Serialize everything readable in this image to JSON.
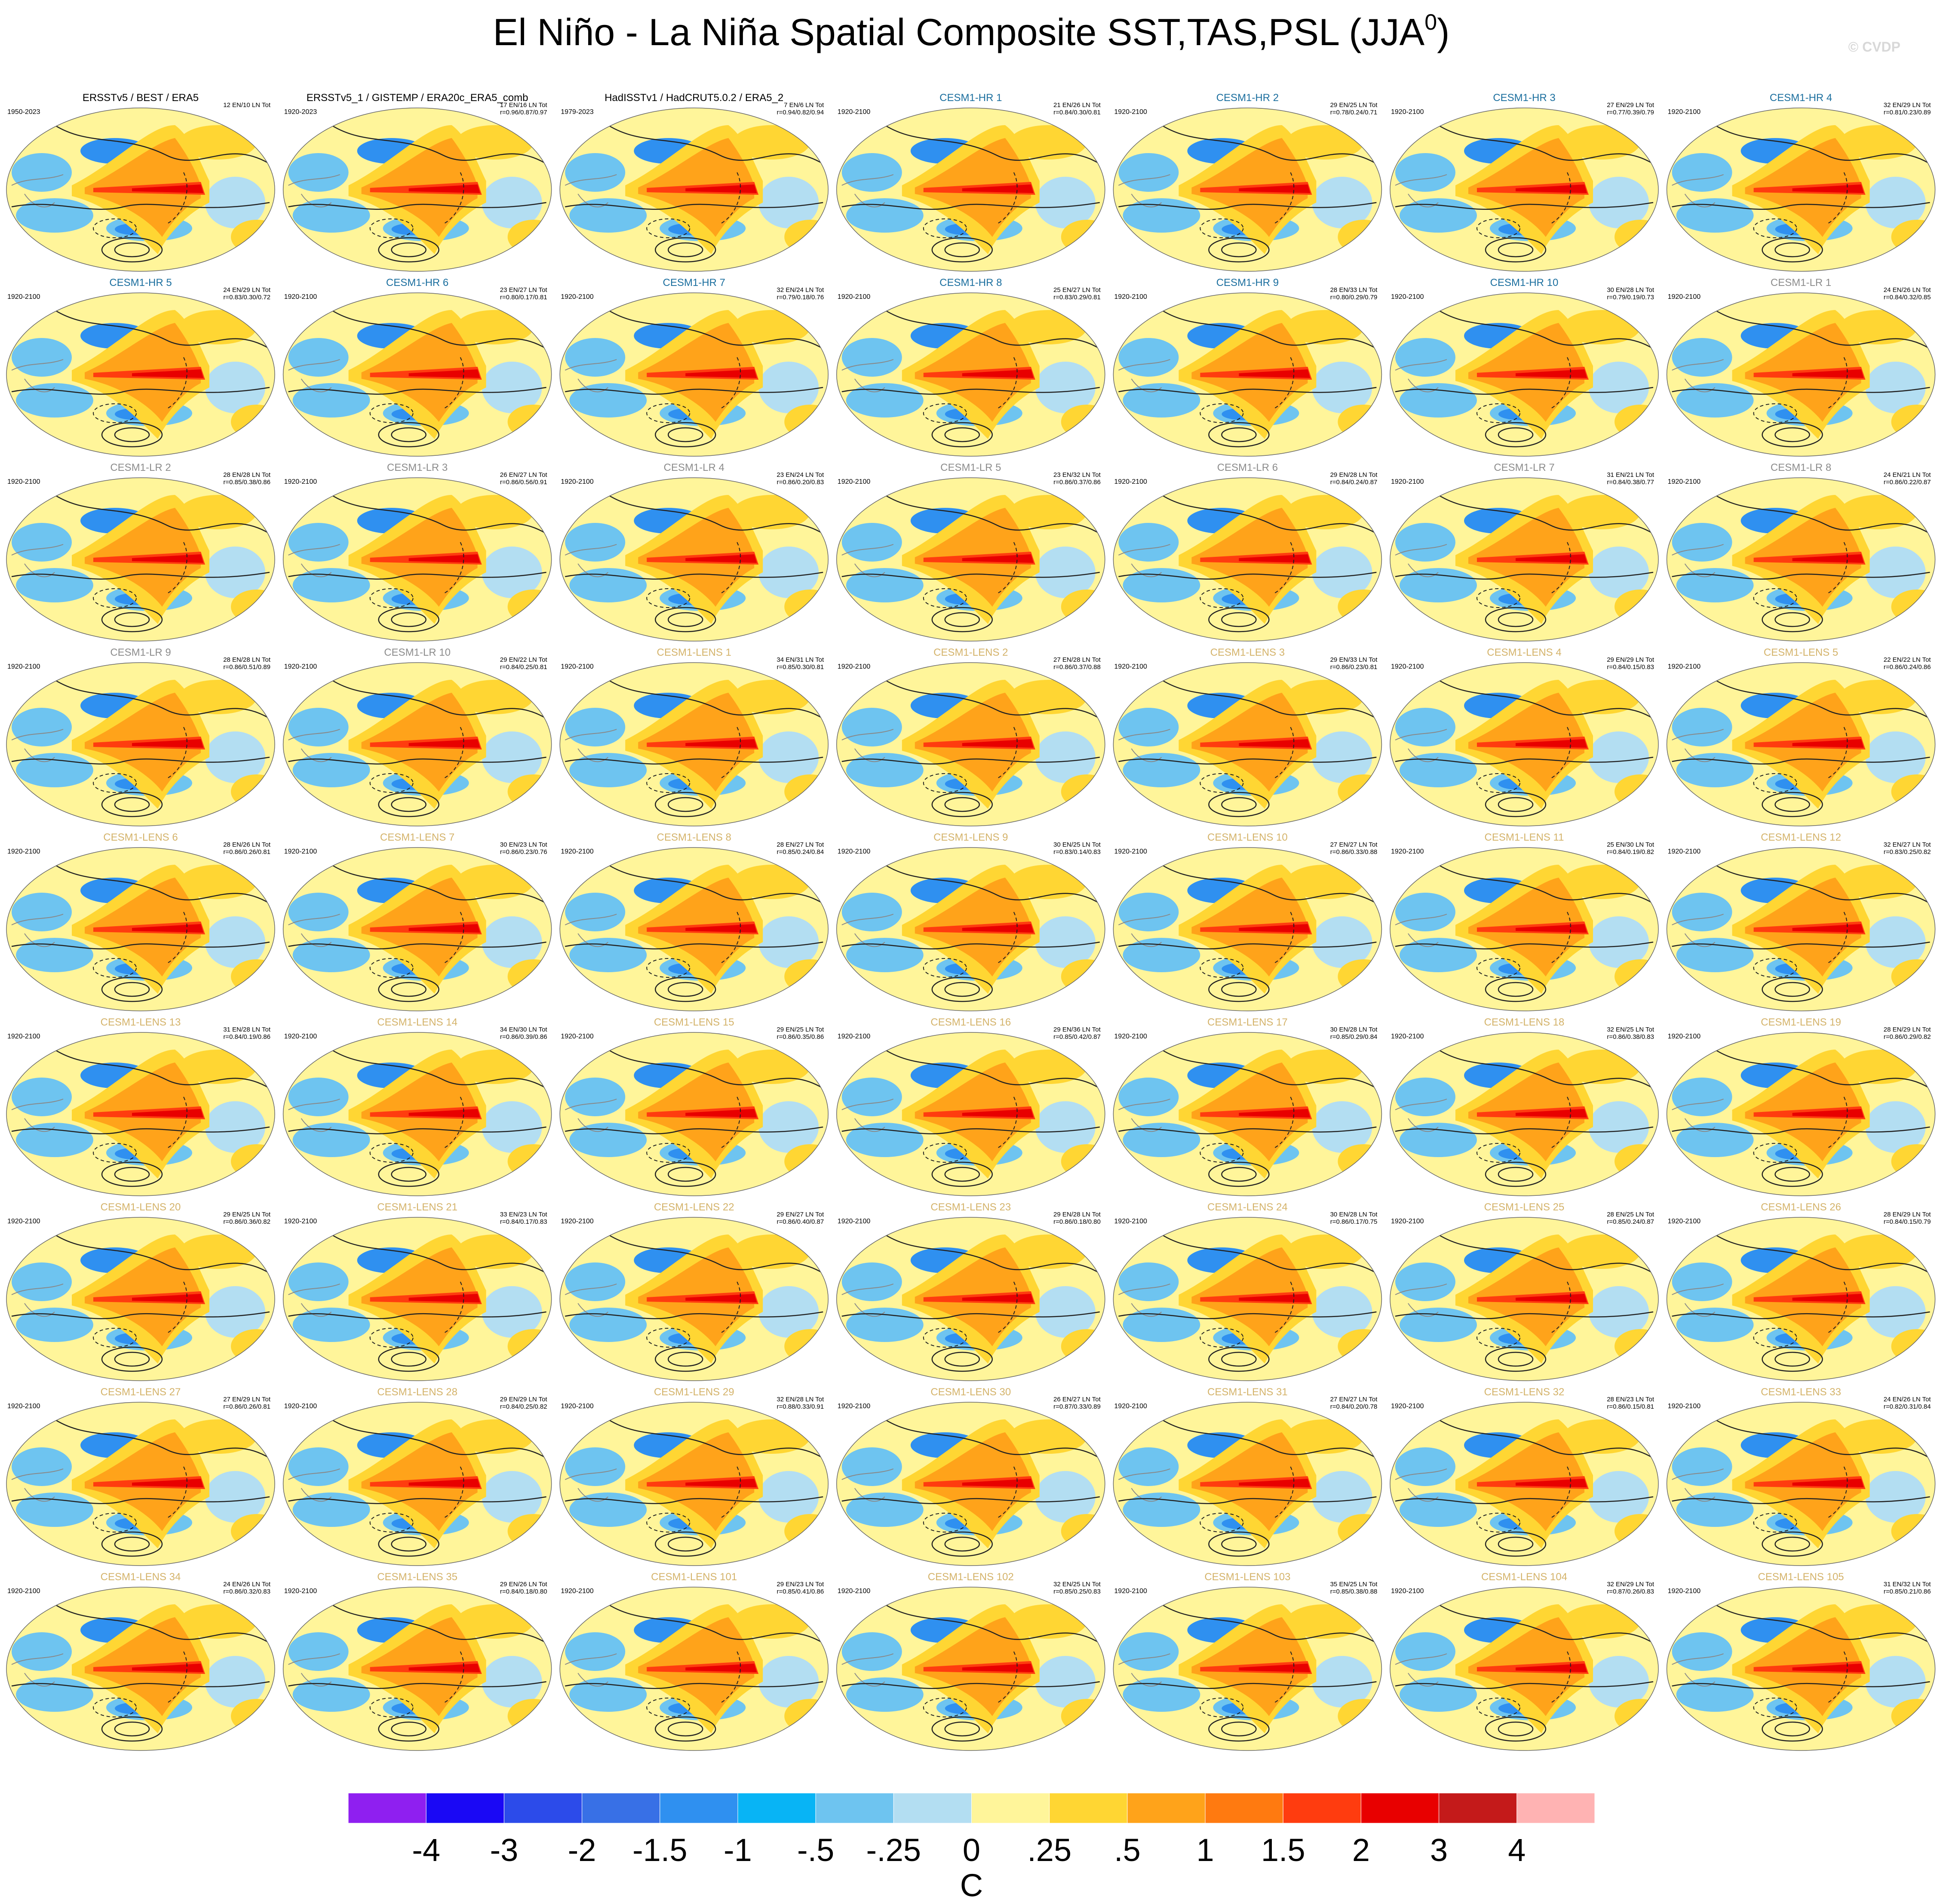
{
  "title": "El Niño - La Niña Spatial Composite SST,TAS,PSL (JJA",
  "title_superscript": "0",
  "title_close": ")",
  "watermark": "© CVDP",
  "panels": [
    {
      "title": "ERSSTv5 / BEST / ERA5",
      "color": "#000000",
      "period": "1950-2023",
      "counts": "12 EN/10 LN Tot"
    },
    {
      "title": "ERSSTv5_1 / GISTEMP / ERA20c_ERA5_comb",
      "color": "#000000",
      "period": "1920-2023",
      "counts": "17 EN/16 LN Tot",
      "stats": "r=0.96/0.87/0.97"
    },
    {
      "title": "HadISSTv1 / HadCRUT5.0.2 / ERA5_2",
      "color": "#000000",
      "period": "1979-2023",
      "counts": "7 EN/6 LN Tot",
      "stats": "r=0.94/0.82/0.94"
    },
    {
      "title": "CESM1-HR 1",
      "color": "#1a6e9e",
      "period": "1920-2100",
      "counts": "21 EN/26 LN Tot",
      "stats": "r=0.84/0.30/0.81"
    },
    {
      "title": "CESM1-HR 2",
      "color": "#1a6e9e",
      "period": "1920-2100",
      "counts": "29 EN/25 LN Tot",
      "stats": "r=0.78/0.24/0.71"
    },
    {
      "title": "CESM1-HR 3",
      "color": "#1a6e9e",
      "period": "1920-2100",
      "counts": "27 EN/29 LN Tot",
      "stats": "r=0.77/0.39/0.79"
    },
    {
      "title": "CESM1-HR 4",
      "color": "#1a6e9e",
      "period": "1920-2100",
      "counts": "32 EN/29 LN Tot",
      "stats": "r=0.81/0.23/0.89"
    },
    {
      "title": "CESM1-HR 5",
      "color": "#1a6e9e",
      "period": "1920-2100",
      "counts": "24 EN/29 LN Tot",
      "stats": "r=0.83/0.30/0.72"
    },
    {
      "title": "CESM1-HR 6",
      "color": "#1a6e9e",
      "period": "1920-2100",
      "counts": "23 EN/27 LN Tot",
      "stats": "r=0.80/0.17/0.81"
    },
    {
      "title": "CESM1-HR 7",
      "color": "#1a6e9e",
      "period": "1920-2100",
      "counts": "32 EN/24 LN Tot",
      "stats": "r=0.79/0.18/0.76"
    },
    {
      "title": "CESM1-HR 8",
      "color": "#1a6e9e",
      "period": "1920-2100",
      "counts": "25 EN/27 LN Tot",
      "stats": "r=0.83/0.29/0.81"
    },
    {
      "title": "CESM1-HR 9",
      "color": "#1a6e9e",
      "period": "1920-2100",
      "counts": "28 EN/33 LN Tot",
      "stats": "r=0.80/0.29/0.79"
    },
    {
      "title": "CESM1-HR 10",
      "color": "#1a6e9e",
      "period": "1920-2100",
      "counts": "30 EN/28 LN Tot",
      "stats": "r=0.79/0.19/0.73"
    },
    {
      "title": "CESM1-LR 1",
      "color": "#8c8c8c",
      "period": "1920-2100",
      "counts": "24 EN/26 LN Tot",
      "stats": "r=0.84/0.32/0.85"
    },
    {
      "title": "CESM1-LR 2",
      "color": "#8c8c8c",
      "period": "1920-2100",
      "counts": "28 EN/28 LN Tot",
      "stats": "r=0.85/0.38/0.86"
    },
    {
      "title": "CESM1-LR 3",
      "color": "#8c8c8c",
      "period": "1920-2100",
      "counts": "26 EN/27 LN Tot",
      "stats": "r=0.86/0.56/0.91"
    },
    {
      "title": "CESM1-LR 4",
      "color": "#8c8c8c",
      "period": "1920-2100",
      "counts": "23 EN/24 LN Tot",
      "stats": "r=0.86/0.20/0.83"
    },
    {
      "title": "CESM1-LR 5",
      "color": "#8c8c8c",
      "period": "1920-2100",
      "counts": "23 EN/32 LN Tot",
      "stats": "r=0.86/0.37/0.86"
    },
    {
      "title": "CESM1-LR 6",
      "color": "#8c8c8c",
      "period": "1920-2100",
      "counts": "29 EN/28 LN Tot",
      "stats": "r=0.84/0.24/0.87"
    },
    {
      "title": "CESM1-LR 7",
      "color": "#8c8c8c",
      "period": "1920-2100",
      "counts": "31 EN/21 LN Tot",
      "stats": "r=0.84/0.38/0.77"
    },
    {
      "title": "CESM1-LR 8",
      "color": "#8c8c8c",
      "period": "1920-2100",
      "counts": "24 EN/21 LN Tot",
      "stats": "r=0.86/0.22/0.87"
    },
    {
      "title": "CESM1-LR 9",
      "color": "#8c8c8c",
      "period": "1920-2100",
      "counts": "28 EN/28 LN Tot",
      "stats": "r=0.86/0.51/0.89"
    },
    {
      "title": "CESM1-LR 10",
      "color": "#8c8c8c",
      "period": "1920-2100",
      "counts": "29 EN/22 LN Tot",
      "stats": "r=0.84/0.25/0.81"
    },
    {
      "title": "CESM1-LENS 1",
      "color": "#d4b36a",
      "period": "1920-2100",
      "counts": "34 EN/31 LN Tot",
      "stats": "r=0.85/0.30/0.81"
    },
    {
      "title": "CESM1-LENS 2",
      "color": "#d4b36a",
      "period": "1920-2100",
      "counts": "27 EN/28 LN Tot",
      "stats": "r=0.86/0.37/0.88"
    },
    {
      "title": "CESM1-LENS 3",
      "color": "#d4b36a",
      "period": "1920-2100",
      "counts": "29 EN/33 LN Tot",
      "stats": "r=0.86/0.23/0.81"
    },
    {
      "title": "CESM1-LENS 4",
      "color": "#d4b36a",
      "period": "1920-2100",
      "counts": "29 EN/29 LN Tot",
      "stats": "r=0.84/0.15/0.83"
    },
    {
      "title": "CESM1-LENS 5",
      "color": "#d4b36a",
      "period": "1920-2100",
      "counts": "22 EN/22 LN Tot",
      "stats": "r=0.86/0.24/0.86"
    },
    {
      "title": "CESM1-LENS 6",
      "color": "#d4b36a",
      "period": "1920-2100",
      "counts": "28 EN/26 LN Tot",
      "stats": "r=0.86/0.26/0.81"
    },
    {
      "title": "CESM1-LENS 7",
      "color": "#d4b36a",
      "period": "1920-2100",
      "counts": "30 EN/23 LN Tot",
      "stats": "r=0.86/0.23/0.76"
    },
    {
      "title": "CESM1-LENS 8",
      "color": "#d4b36a",
      "period": "1920-2100",
      "counts": "28 EN/27 LN Tot",
      "stats": "r=0.85/0.24/0.84"
    },
    {
      "title": "CESM1-LENS 9",
      "color": "#d4b36a",
      "period": "1920-2100",
      "counts": "30 EN/25 LN Tot",
      "stats": "r=0.83/0.14/0.83"
    },
    {
      "title": "CESM1-LENS 10",
      "color": "#d4b36a",
      "period": "1920-2100",
      "counts": "27 EN/27 LN Tot",
      "stats": "r=0.86/0.33/0.88"
    },
    {
      "title": "CESM1-LENS 11",
      "color": "#d4b36a",
      "period": "1920-2100",
      "counts": "25 EN/30 LN Tot",
      "stats": "r=0.84/0.19/0.82"
    },
    {
      "title": "CESM1-LENS 12",
      "color": "#d4b36a",
      "period": "1920-2100",
      "counts": "32 EN/27 LN Tot",
      "stats": "r=0.83/0.25/0.82"
    },
    {
      "title": "CESM1-LENS 13",
      "color": "#d4b36a",
      "period": "1920-2100",
      "counts": "31 EN/28 LN Tot",
      "stats": "r=0.84/0.19/0.86"
    },
    {
      "title": "CESM1-LENS 14",
      "color": "#d4b36a",
      "period": "1920-2100",
      "counts": "34 EN/30 LN Tot",
      "stats": "r=0.86/0.39/0.86"
    },
    {
      "title": "CESM1-LENS 15",
      "color": "#d4b36a",
      "period": "1920-2100",
      "counts": "29 EN/25 LN Tot",
      "stats": "r=0.86/0.35/0.86"
    },
    {
      "title": "CESM1-LENS 16",
      "color": "#d4b36a",
      "period": "1920-2100",
      "counts": "29 EN/36 LN Tot",
      "stats": "r=0.85/0.42/0.87"
    },
    {
      "title": "CESM1-LENS 17",
      "color": "#d4b36a",
      "period": "1920-2100",
      "counts": "30 EN/28 LN Tot",
      "stats": "r=0.85/0.29/0.84"
    },
    {
      "title": "CESM1-LENS 18",
      "color": "#d4b36a",
      "period": "1920-2100",
      "counts": "32 EN/25 LN Tot",
      "stats": "r=0.86/0.38/0.83"
    },
    {
      "title": "CESM1-LENS 19",
      "color": "#d4b36a",
      "period": "1920-2100",
      "counts": "28 EN/29 LN Tot",
      "stats": "r=0.86/0.29/0.82"
    },
    {
      "title": "CESM1-LENS 20",
      "color": "#d4b36a",
      "period": "1920-2100",
      "counts": "29 EN/25 LN Tot",
      "stats": "r=0.86/0.36/0.82"
    },
    {
      "title": "CESM1-LENS 21",
      "color": "#d4b36a",
      "period": "1920-2100",
      "counts": "33 EN/23 LN Tot",
      "stats": "r=0.84/0.17/0.83"
    },
    {
      "title": "CESM1-LENS 22",
      "color": "#d4b36a",
      "period": "1920-2100",
      "counts": "29 EN/27 LN Tot",
      "stats": "r=0.86/0.40/0.87"
    },
    {
      "title": "CESM1-LENS 23",
      "color": "#d4b36a",
      "period": "1920-2100",
      "counts": "29 EN/28 LN Tot",
      "stats": "r=0.86/0.18/0.80"
    },
    {
      "title": "CESM1-LENS 24",
      "color": "#d4b36a",
      "period": "1920-2100",
      "counts": "30 EN/28 LN Tot",
      "stats": "r=0.86/0.17/0.75"
    },
    {
      "title": "CESM1-LENS 25",
      "color": "#d4b36a",
      "period": "1920-2100",
      "counts": "28 EN/25 LN Tot",
      "stats": "r=0.85/0.24/0.87"
    },
    {
      "title": "CESM1-LENS 26",
      "color": "#d4b36a",
      "period": "1920-2100",
      "counts": "28 EN/29 LN Tot",
      "stats": "r=0.84/0.15/0.79"
    },
    {
      "title": "CESM1-LENS 27",
      "color": "#d4b36a",
      "period": "1920-2100",
      "counts": "27 EN/29 LN Tot",
      "stats": "r=0.86/0.26/0.81"
    },
    {
      "title": "CESM1-LENS 28",
      "color": "#d4b36a",
      "period": "1920-2100",
      "counts": "29 EN/29 LN Tot",
      "stats": "r=0.84/0.25/0.82"
    },
    {
      "title": "CESM1-LENS 29",
      "color": "#d4b36a",
      "period": "1920-2100",
      "counts": "32 EN/28 LN Tot",
      "stats": "r=0.88/0.33/0.91"
    },
    {
      "title": "CESM1-LENS 30",
      "color": "#d4b36a",
      "period": "1920-2100",
      "counts": "26 EN/27 LN Tot",
      "stats": "r=0.87/0.33/0.89"
    },
    {
      "title": "CESM1-LENS 31",
      "color": "#d4b36a",
      "period": "1920-2100",
      "counts": "27 EN/27 LN Tot",
      "stats": "r=0.84/0.20/0.78"
    },
    {
      "title": "CESM1-LENS 32",
      "color": "#d4b36a",
      "period": "1920-2100",
      "counts": "28 EN/23 LN Tot",
      "stats": "r=0.86/0.15/0.81"
    },
    {
      "title": "CESM1-LENS 33",
      "color": "#d4b36a",
      "period": "1920-2100",
      "counts": "24 EN/26 LN Tot",
      "stats": "r=0.82/0.31/0.84"
    },
    {
      "title": "CESM1-LENS 34",
      "color": "#d4b36a",
      "period": "1920-2100",
      "counts": "24 EN/26 LN Tot",
      "stats": "r=0.86/0.32/0.83"
    },
    {
      "title": "CESM1-LENS 35",
      "color": "#d4b36a",
      "period": "1920-2100",
      "counts": "29 EN/26 LN Tot",
      "stats": "r=0.84/0.18/0.80"
    },
    {
      "title": "CESM1-LENS 101",
      "color": "#d4b36a",
      "period": "1920-2100",
      "counts": "29 EN/23 LN Tot",
      "stats": "r=0.85/0.41/0.86"
    },
    {
      "title": "CESM1-LENS 102",
      "color": "#d4b36a",
      "period": "1920-2100",
      "counts": "32 EN/25 LN Tot",
      "stats": "r=0.85/0.25/0.83"
    },
    {
      "title": "CESM1-LENS 103",
      "color": "#d4b36a",
      "period": "1920-2100",
      "counts": "35 EN/25 LN Tot",
      "stats": "r=0.85/0.38/0.88"
    },
    {
      "title": "CESM1-LENS 104",
      "color": "#d4b36a",
      "period": "1920-2100",
      "counts": "32 EN/29 LN Tot",
      "stats": "r=0.87/0.26/0.83"
    },
    {
      "title": "CESM1-LENS 105",
      "color": "#d4b36a",
      "period": "1920-2100",
      "counts": "31 EN/32 LN Tot",
      "stats": "r=0.85/0.21/0.86"
    }
  ],
  "colorbar": {
    "colors": [
      "#8f1ff0",
      "#1a08f5",
      "#2c4bea",
      "#3870e6",
      "#2f90f0",
      "#08b4f5",
      "#6ec4f0",
      "#b3def2",
      "#fff59a",
      "#ffd633",
      "#ffa31a",
      "#ff7a10",
      "#ff3c0f",
      "#e80000",
      "#c41a1a",
      "#ffb3b3"
    ],
    "ticks": [
      -4,
      -3,
      -2,
      -1.5,
      -1,
      {
        "value": -0.5,
        "label": "-.5"
      },
      {
        "value": -0.25,
        "label": "-.25"
      },
      0,
      {
        "value": 0.25,
        "label": ".25"
      },
      {
        "value": 0.5,
        "label": ".5"
      },
      1,
      1.5,
      2,
      3,
      4
    ],
    "units": "C"
  }
}
